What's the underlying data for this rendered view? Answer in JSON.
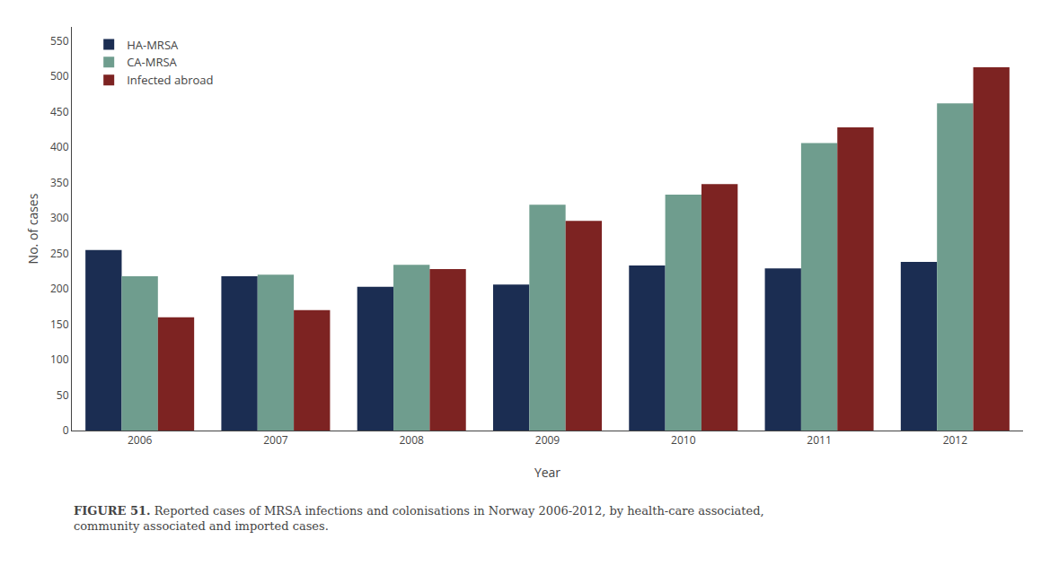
{
  "chart_data": {
    "type": "bar",
    "title": "FIGURE 51.",
    "subtitle": "Reported cases of MRSA infections and colonisations in Norway 2006-2012, by health-care associated,\ncommunity associated and imported cases.",
    "categories": [
      "2006",
      "2007",
      "2008",
      "2009",
      "2010",
      "2011",
      "2012"
    ],
    "series": [
      {
        "name": "HA-MRSA",
        "color": "#1b2d52",
        "values": [
          255,
          218,
          203,
          206,
          233,
          229,
          238
        ]
      },
      {
        "name": "CA-MRSA",
        "color": "#6f9d8e",
        "values": [
          218,
          220,
          234,
          319,
          333,
          406,
          462
        ]
      },
      {
        "name": "Infected abroad",
        "color": "#7d2322",
        "values": [
          160,
          170,
          228,
          296,
          348,
          428,
          513
        ]
      }
    ],
    "xlabel": "Year",
    "ylabel": "No. of cases",
    "ylim": [
      0,
      570
    ],
    "yticks": [
      0,
      50,
      100,
      150,
      200,
      250,
      300,
      350,
      400,
      450,
      500,
      550
    ],
    "grid": false,
    "legend": "upper left"
  }
}
